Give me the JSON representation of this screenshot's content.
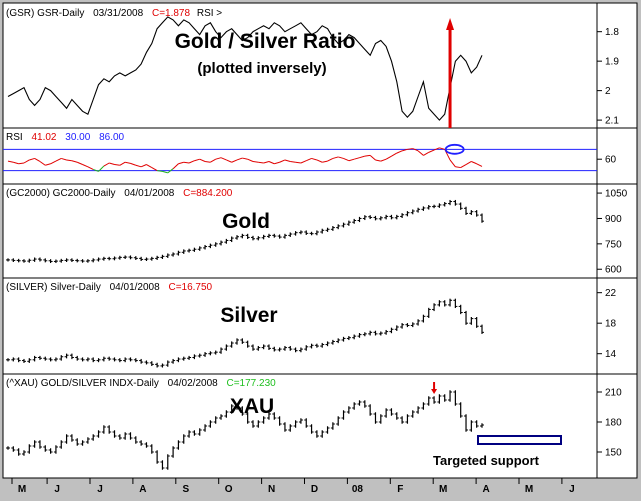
{
  "chart_data": [
    {
      "type": "line",
      "header": {
        "symbol": "(GSR) GSR-Daily",
        "date": "03/31/2008",
        "close": "C=1.878",
        "extra": "RSI >"
      },
      "title": "Gold / Silver Ratio",
      "subtitle": "(plotted inversely)",
      "y_ticks": [
        "2.1",
        "2",
        "1.9",
        "1.8"
      ],
      "ylim": [
        1.74,
        2.12
      ],
      "inverted": true,
      "series": [
        {
          "values": [
            2.02,
            2.01,
            2.0,
            1.99,
            2.03,
            2.05,
            2.03,
            1.99,
            2.0,
            2.02,
            2.04,
            2.06,
            2.03,
            2.05,
            2.07,
            2.08,
            2.03,
            1.98,
            1.96,
            1.97,
            1.95,
            1.94,
            1.95,
            1.94,
            1.93,
            1.91,
            1.87,
            1.84,
            1.79,
            1.77,
            1.75,
            1.76,
            1.78,
            1.76,
            1.77,
            1.79,
            1.81,
            1.78,
            1.77,
            1.8,
            1.82,
            1.8,
            1.79,
            1.81,
            1.83,
            1.82,
            1.8,
            1.79,
            1.78,
            1.79,
            1.77,
            1.78,
            1.8,
            1.79,
            1.78,
            1.77,
            1.79,
            1.81,
            1.8,
            1.78,
            1.79,
            1.82,
            1.84,
            1.83,
            1.81,
            1.82,
            1.84,
            1.86,
            1.88,
            1.84,
            1.83,
            1.85,
            1.9,
            1.97,
            2.07,
            2.09,
            2.07,
            2.02,
            1.97,
            2.06,
            2.08,
            2.1,
            2.08,
            1.99,
            1.9,
            1.88,
            1.9,
            1.94,
            1.92,
            1.88
          ]
        }
      ],
      "marker": {
        "type": "vertical-arrow",
        "color": "#e00000",
        "at_index": 83
      }
    },
    {
      "type": "line",
      "label": "RSI",
      "values_header": [
        "41.02",
        "30.00",
        "86.00"
      ],
      "header_colors": [
        "#e00000",
        "#2020ff",
        "#2020ff"
      ],
      "y_ticks": [
        "60"
      ],
      "ylim": [
        0,
        100
      ],
      "levels": [
        30,
        86
      ],
      "highlight": {
        "shape": "ellipse",
        "color": "#2020ff",
        "at_index": 85
      },
      "series": [
        {
          "values": [
            55,
            52,
            48,
            50,
            58,
            62,
            54,
            44,
            48,
            55,
            62,
            58,
            56,
            52,
            46,
            40,
            33,
            28,
            42,
            50,
            46,
            44,
            52,
            49,
            44,
            40,
            46,
            38,
            30,
            28,
            24,
            35,
            48,
            52,
            50,
            56,
            60,
            54,
            52,
            60,
            64,
            58,
            52,
            58,
            63,
            60,
            54,
            52,
            50,
            54,
            48,
            52,
            58,
            54,
            52,
            50,
            56,
            62,
            58,
            52,
            55,
            62,
            66,
            62,
            56,
            60,
            64,
            68,
            70,
            58,
            55,
            60,
            68,
            76,
            82,
            86,
            88,
            82,
            70,
            78,
            84,
            90,
            86,
            58,
            40,
            38,
            46,
            54,
            48,
            41
          ]
        }
      ]
    },
    {
      "type": "bar",
      "header": {
        "symbol": "(GC2000) GC2000-Daily",
        "date": "04/01/2008",
        "close": "C=884.200"
      },
      "title": "Gold",
      "y_ticks": [
        "1050",
        "900",
        "750",
        "600"
      ],
      "ylim": [
        560,
        1080
      ],
      "series": [
        {
          "values": [
            655,
            652,
            650,
            648,
            653,
            660,
            655,
            650,
            646,
            648,
            652,
            655,
            652,
            650,
            648,
            650,
            655,
            660,
            664,
            662,
            666,
            670,
            672,
            668,
            664,
            658,
            660,
            664,
            670,
            676,
            684,
            690,
            700,
            708,
            712,
            718,
            726,
            734,
            742,
            750,
            760,
            770,
            784,
            792,
            800,
            788,
            780,
            786,
            794,
            800,
            796,
            790,
            800,
            808,
            816,
            820,
            812,
            810,
            820,
            830,
            836,
            846,
            856,
            866,
            878,
            888,
            900,
            910,
            906,
            898,
            904,
            912,
            904,
            912,
            922,
            934,
            944,
            954,
            962,
            970,
            972,
            980,
            988,
            1000,
            985,
            960,
            930,
            940,
            920,
            884
          ]
        }
      ]
    },
    {
      "type": "bar",
      "header": {
        "symbol": "(SILVER) Silver-Daily",
        "date": "04/01/2008",
        "close": "C=16.750"
      },
      "title": "Silver",
      "y_ticks": [
        "22",
        "18",
        "14"
      ],
      "ylim": [
        11.6,
        23.4
      ],
      "series": [
        {
          "values": [
            13.2,
            13.3,
            13.1,
            13.0,
            13.2,
            13.5,
            13.4,
            13.3,
            13.2,
            13.3,
            13.6,
            13.8,
            13.5,
            13.3,
            13.2,
            13.3,
            13.1,
            13.2,
            13.4,
            13.3,
            13.2,
            13.1,
            13.3,
            13.2,
            13.1,
            12.9,
            12.8,
            12.6,
            12.4,
            12.5,
            12.9,
            13.1,
            13.3,
            13.4,
            13.5,
            13.7,
            13.8,
            14.0,
            14.1,
            14.2,
            14.6,
            15.0,
            15.4,
            15.8,
            15.5,
            15.0,
            14.6,
            14.8,
            15.0,
            14.7,
            14.5,
            14.6,
            14.8,
            14.6,
            14.4,
            14.6,
            14.9,
            15.1,
            15.0,
            15.2,
            15.4,
            15.6,
            15.8,
            16.0,
            16.1,
            16.3,
            16.5,
            16.6,
            16.8,
            16.6,
            16.7,
            16.9,
            17.2,
            17.5,
            17.8,
            17.7,
            17.9,
            18.3,
            18.9,
            19.8,
            20.4,
            20.8,
            20.4,
            21.0,
            20.2,
            19.4,
            18.0,
            18.6,
            17.6,
            16.8
          ]
        }
      ]
    },
    {
      "type": "bar",
      "header": {
        "symbol": "(^XAU) GOLD/SILVER INDX-Daily",
        "date": "04/02/2008",
        "close": "C=177.230"
      },
      "title": "XAU",
      "y_ticks": [
        "210",
        "180",
        "150"
      ],
      "ylim": [
        128,
        224
      ],
      "annotation": "Targeted support",
      "support_box": {
        "from": 158,
        "to": 166
      },
      "marker": {
        "type": "down-arrow",
        "color": "#e00000",
        "at_index": 80
      },
      "series": [
        {
          "values": [
            154,
            152,
            148,
            150,
            156,
            160,
            155,
            152,
            150,
            155,
            160,
            166,
            162,
            158,
            160,
            163,
            166,
            170,
            175,
            170,
            166,
            164,
            168,
            164,
            160,
            158,
            156,
            150,
            140,
            134,
            146,
            154,
            160,
            166,
            170,
            168,
            172,
            176,
            180,
            184,
            186,
            190,
            196,
            194,
            188,
            180,
            176,
            180,
            184,
            188,
            184,
            178,
            172,
            176,
            180,
            182,
            176,
            170,
            166,
            170,
            174,
            178,
            184,
            190,
            194,
            198,
            200,
            196,
            188,
            180,
            186,
            192,
            188,
            184,
            180,
            186,
            190,
            194,
            198,
            204,
            200,
            206,
            202,
            210,
            198,
            186,
            172,
            180,
            176,
            177
          ]
        }
      ]
    }
  ],
  "x_axis": {
    "labels": [
      "M",
      "J",
      "J",
      "A",
      "S",
      "O",
      "N",
      "D",
      "08",
      "F",
      "M",
      "A",
      "M",
      "J"
    ],
    "positions": [
      0,
      9,
      20,
      31,
      42,
      53,
      64,
      75,
      86,
      97,
      108,
      119,
      130,
      141
    ]
  }
}
